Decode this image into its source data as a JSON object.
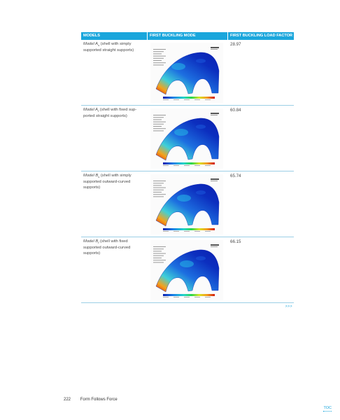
{
  "table": {
    "headers": [
      "MODELS",
      "FIRST BUCKLING MODE",
      "FIRST BUCKLING LOAD FACTOR"
    ],
    "rows": [
      {
        "model_name": "Model A",
        "model_sub": "s",
        "model_desc": " (shell with simply supported straight supports)",
        "factor": "28.97"
      },
      {
        "model_name": "Model A",
        "model_sub": "f",
        "model_desc": " (shell with fixed sup-ported straight supports)",
        "factor": "60.84"
      },
      {
        "model_name": "Model B",
        "model_sub": "s",
        "model_desc": " (shell with simply supported outward-curved supports)",
        "factor": "65.74"
      },
      {
        "model_name": "Model B",
        "model_sub": "f",
        "model_desc": " (shell with fixed supported outward-curved supports)",
        "factor": "66.15"
      }
    ]
  },
  "more_link": ">>>",
  "footer": {
    "page_number": "222",
    "book_title": "Form Follows Force"
  },
  "toc_link": "TOC",
  "colors": {
    "accent": "#1aa6dc",
    "rule": "#9ccfe6"
  }
}
